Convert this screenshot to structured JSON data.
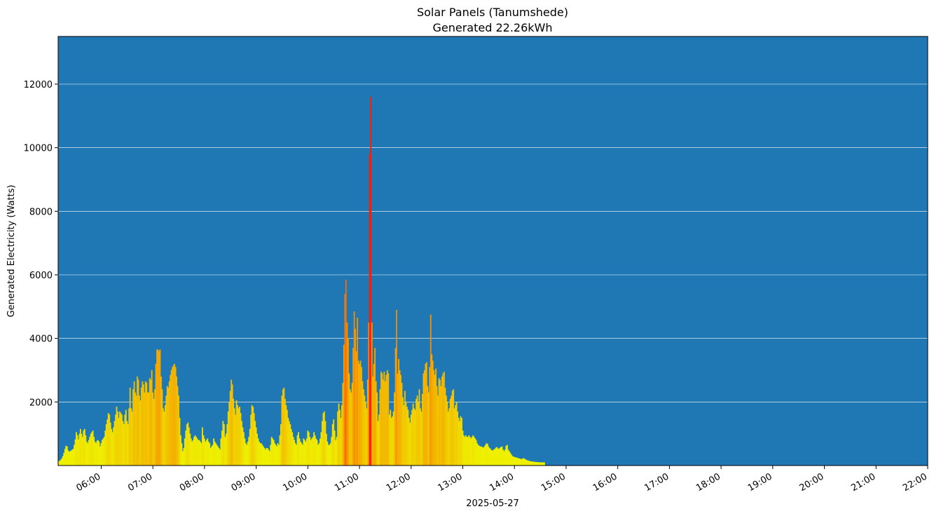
{
  "chart_data": {
    "type": "bar",
    "title": "Solar Panels (Tanumshede)",
    "subtitle": "Generated 22.26kWh",
    "xlabel": "2025-05-27",
    "ylabel": "Generated Electricity (Watts)",
    "x_start": "05:10",
    "x_end": "22:00",
    "xlim": [
      "05:10",
      "22:00"
    ],
    "ylim": [
      0,
      13500
    ],
    "y_ticks": [
      "2000",
      "4000",
      "6000",
      "8000",
      "10000",
      "12000"
    ],
    "x_ticks": [
      "06:00",
      "07:00",
      "08:00",
      "09:00",
      "10:00",
      "11:00",
      "12:00",
      "13:00",
      "14:00",
      "15:00",
      "16:00",
      "17:00",
      "18:00",
      "19:00",
      "20:00",
      "21:00",
      "22:00"
    ],
    "grid": "horizontal",
    "colors": {
      "background": "#1f77b4",
      "grid": "#ffffff",
      "low": "#eef000",
      "mid": "#f2c000",
      "high": "#f98800",
      "peak": "#ff1a00"
    },
    "series": [
      {
        "time_range": [
          "05:10",
          "22:00"
        ],
        "step_minutes": 1.2,
        "values": [
          140,
          150,
          180,
          230,
          300,
          400,
          520,
          620,
          600,
          480,
          440,
          450,
          470,
          500,
          520,
          650,
          820,
          1050,
          950,
          820,
          1000,
          1150,
          1000,
          900,
          1100,
          1150,
          950,
          750,
          700,
          800,
          900,
          1000,
          1050,
          1100,
          900,
          750,
          700,
          780,
          800,
          750,
          600,
          700,
          800,
          850,
          900,
          1100,
          1300,
          1450,
          1650,
          1600,
          1350,
          1150,
          1050,
          1200,
          1400,
          1600,
          1850,
          1700,
          1500,
          1700,
          1650,
          1600,
          1400,
          1300,
          1600,
          1750,
          1400,
          1300,
          1800,
          2450,
          1800,
          1700,
          2400,
          2650,
          2300,
          2200,
          2800,
          2700,
          2200,
          2050,
          2450,
          2650,
          2550,
          2300,
          2650,
          2600,
          2300,
          2300,
          2750,
          2700,
          3000,
          2300,
          2100,
          2400,
          3200,
          3650,
          3650,
          3600,
          3650,
          2800,
          2400,
          1800,
          1700,
          1900,
          2200,
          2500,
          2450,
          2650,
          2850,
          3000,
          3100,
          3150,
          3200,
          3100,
          2800,
          2500,
          2200,
          1500,
          950,
          700,
          450,
          550,
          850,
          1100,
          1300,
          1350,
          1200,
          1000,
          850,
          750,
          800,
          900,
          950,
          900,
          850,
          800,
          800,
          750,
          700,
          1200,
          950,
          850,
          750,
          800,
          850,
          750,
          700,
          550,
          600,
          650,
          850,
          750,
          700,
          650,
          600,
          550,
          500,
          850,
          1100,
          1400,
          1300,
          900,
          1000,
          1300,
          1700,
          2000,
          2350,
          2700,
          2550,
          2100,
          1800,
          1600,
          2050,
          1900,
          1800,
          1850,
          1650,
          1400,
          1200,
          1050,
          850,
          700,
          650,
          750,
          900,
          1150,
          1600,
          1900,
          1850,
          1650,
          1400,
          1200,
          1000,
          850,
          750,
          700,
          700,
          650,
          600,
          550,
          500,
          550,
          550,
          500,
          450,
          650,
          900,
          850,
          800,
          700,
          650,
          600,
          700,
          650,
          950,
          1300,
          2200,
          2400,
          2450,
          2100,
          1900,
          1750,
          1500,
          1400,
          1300,
          1150,
          1050,
          900,
          800,
          700,
          650,
          950,
          1050,
          850,
          750,
          700,
          650,
          850,
          800,
          750,
          850,
          1100,
          1050,
          900,
          800,
          850,
          900,
          1050,
          950,
          850,
          800,
          650,
          700,
          850,
          1050,
          1400,
          1650,
          1700,
          1400,
          1000,
          750,
          650,
          650,
          700,
          900,
          1300,
          1450,
          1100,
          800,
          900,
          1700,
          1950,
          1750,
          1500,
          1900,
          2600,
          3800,
          5400,
          5850,
          4500,
          4000,
          2900,
          2400,
          2300,
          2600,
          3700,
          4850,
          4300,
          3600,
          4650,
          3300,
          3200,
          3300,
          3100,
          2650,
          2400,
          2200,
          2000,
          1800,
          2700,
          4500,
          9800,
          11600,
          4500,
          2800,
          3200,
          3700,
          2650,
          2300,
          1400,
          1600,
          2400,
          2950,
          2900,
          2700,
          2950,
          2650,
          2850,
          3000,
          2900,
          1600,
          1750,
          1500,
          1550,
          1700,
          2300,
          3700,
          4900,
          2900,
          3350,
          3000,
          2850,
          2600,
          2150,
          1900,
          2350,
          2000,
          1850,
          1750,
          1500,
          1350,
          1600,
          1750,
          1950,
          1800,
          1750,
          2100,
          2200,
          2000,
          2400,
          1800,
          1700,
          2250,
          2900,
          3000,
          3200,
          3250,
          2500,
          2300,
          3100,
          4750,
          3500,
          3300,
          3000,
          2850,
          3050,
          2500,
          2200,
          2750,
          2700,
          2500,
          2800,
          2900,
          2950,
          2450,
          2200,
          2000,
          1700,
          1800,
          2100,
          2200,
          2350,
          2400,
          1800,
          1900,
          2000,
          1700,
          1500,
          1400,
          1550,
          1500,
          1100,
          950,
          900,
          950,
          900,
          900,
          950,
          900,
          850,
          900,
          950,
          900,
          850,
          800,
          700,
          650,
          620,
          600,
          600,
          580,
          560,
          600,
          650,
          700,
          680,
          600,
          550,
          520,
          480,
          470,
          500,
          520,
          560,
          580,
          540,
          520,
          560,
          580,
          600,
          500,
          450,
          500,
          620,
          650,
          500,
          450,
          400,
          350,
          300,
          280,
          270,
          260,
          250,
          240,
          230,
          220,
          210,
          200,
          220,
          230,
          210,
          190,
          170,
          160,
          150,
          140,
          130,
          130,
          120,
          120,
          115,
          110,
          110,
          105,
          100,
          100,
          100,
          100,
          100,
          100
        ]
      }
    ]
  }
}
